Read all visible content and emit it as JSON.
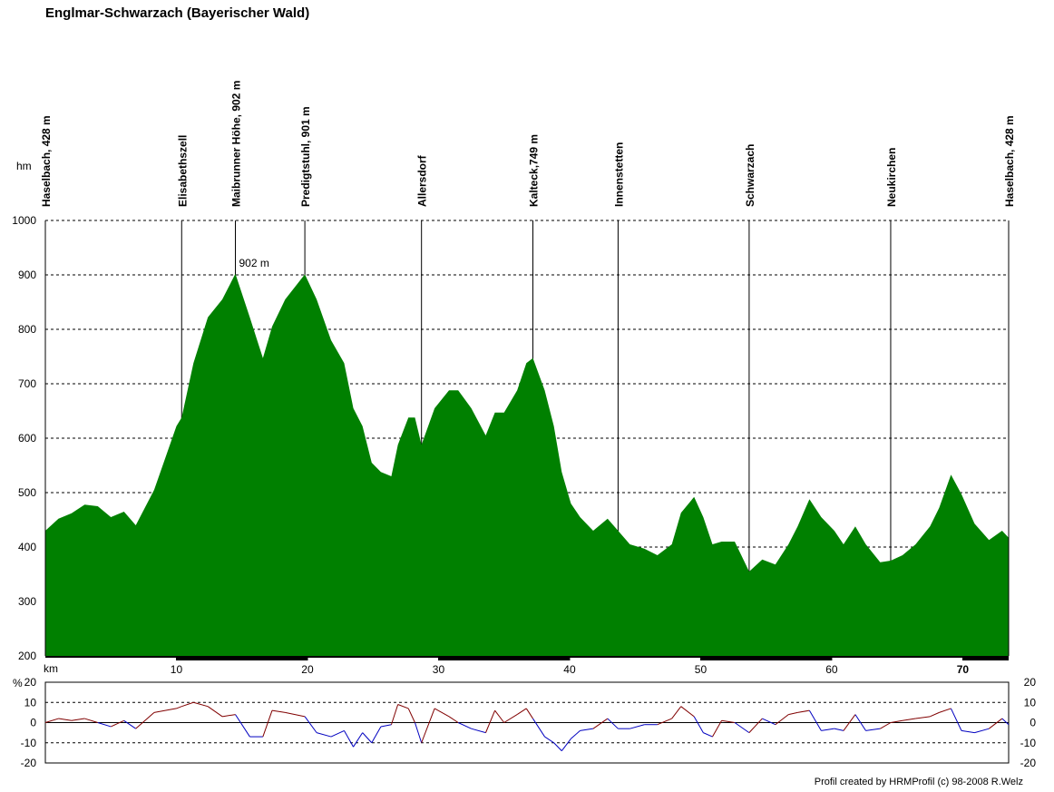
{
  "chart_data": [
    {
      "type": "area",
      "title": "Englmar-Schwarzach (Bayerischer Wald)",
      "y_label": "hm",
      "x_label": "km",
      "color": "#008000",
      "x": [
        0,
        1,
        2,
        3,
        4,
        5,
        6,
        6.9,
        8.3,
        10,
        10.4,
        11.3,
        12.4,
        13.5,
        14.5,
        15.6,
        16.6,
        17.3,
        18.3,
        19.8,
        20.7,
        21.8,
        22.8,
        23.5,
        24.2,
        24.9,
        25.6,
        26.4,
        26.9,
        27.7,
        28.2,
        28.7,
        29.7,
        30.8,
        31.5,
        32.5,
        33.6,
        34.3,
        35,
        36,
        36.7,
        37.2,
        38.1,
        38.8,
        39.4,
        40.1,
        40.8,
        41.8,
        42.9,
        43.7,
        44.6,
        45.7,
        46.7,
        47.8,
        48.5,
        49.5,
        50.2,
        50.9,
        51.6,
        52.6,
        53.7,
        54.7,
        55.7,
        56.7,
        57.4,
        58.3,
        59.2,
        60.2,
        60.9,
        61.8,
        62.6,
        63.7,
        64.5,
        65.4,
        66.4,
        67.5,
        68.2,
        69.1,
        69.9,
        70.9,
        72,
        73,
        73.5
      ],
      "values": [
        430,
        452,
        462,
        478,
        475,
        455,
        465,
        440,
        505,
        622,
        638,
        738,
        822,
        855,
        902,
        822,
        747,
        805,
        855,
        901,
        855,
        780,
        738,
        655,
        622,
        555,
        538,
        530,
        588,
        638,
        638,
        588,
        655,
        688,
        688,
        655,
        605,
        647,
        647,
        688,
        738,
        747,
        688,
        622,
        538,
        480,
        455,
        430,
        452,
        430,
        405,
        397,
        385,
        405,
        463,
        492,
        455,
        405,
        410,
        410,
        355,
        377,
        368,
        405,
        438,
        488,
        455,
        430,
        405,
        438,
        405,
        372,
        375,
        385,
        405,
        438,
        472,
        533,
        497,
        443,
        413,
        430,
        417
      ],
      "xlim": [
        0,
        73.5
      ],
      "ylim": [
        200,
        1000
      ],
      "xticks": [
        10,
        20,
        30,
        40,
        50,
        60,
        70
      ],
      "yticks": [
        200,
        300,
        400,
        500,
        600,
        700,
        800,
        900,
        1000
      ],
      "grid": true,
      "waypoints": [
        {
          "label": "Haselbach, 428 m",
          "x": 0
        },
        {
          "label": "Elisabethszell",
          "x": 10.4
        },
        {
          "label": "Maibrunner Höhe, 902 m",
          "x": 14.5
        },
        {
          "label": "Predigtstuhl, 901 m",
          "x": 19.8
        },
        {
          "label": "Allersdorf",
          "x": 28.7
        },
        {
          "label": "Kalteck,749 m",
          "x": 37.2
        },
        {
          "label": "Innenstetten",
          "x": 43.7
        },
        {
          "label": "Schwarzach",
          "x": 53.7
        },
        {
          "label": "Neukirchen",
          "x": 64.5
        },
        {
          "label": "Haselbach, 428 m",
          "x": 73.5
        }
      ],
      "peak": {
        "text": "902 m",
        "x": 14.5,
        "y": 902,
        "color": "#e00000"
      }
    },
    {
      "type": "gradient",
      "y_label": "%",
      "up_color": "#800000",
      "down_color": "#0000c0",
      "x": [
        0,
        1,
        2,
        3,
        4,
        5,
        6,
        6.9,
        8.3,
        10,
        10.4,
        11.3,
        12.4,
        13.5,
        14.5,
        15.6,
        16.6,
        17.3,
        18.3,
        19.8,
        20.7,
        21.8,
        22.8,
        23.5,
        24.2,
        24.9,
        25.6,
        26.4,
        26.9,
        27.7,
        28.2,
        28.7,
        29.7,
        30.8,
        31.5,
        32.5,
        33.6,
        34.3,
        35,
        36,
        36.7,
        37.2,
        38.1,
        38.8,
        39.4,
        40.1,
        40.8,
        41.8,
        42.9,
        43.7,
        44.6,
        45.7,
        46.7,
        47.8,
        48.5,
        49.5,
        50.2,
        50.9,
        51.6,
        52.6,
        53.7,
        54.7,
        55.7,
        56.7,
        57.4,
        58.3,
        59.2,
        60.2,
        60.9,
        61.8,
        62.6,
        63.7,
        64.5,
        65.4,
        66.4,
        67.5,
        68.2,
        69.1,
        69.9,
        70.9,
        72,
        73,
        73.5
      ],
      "values": [
        0,
        2,
        1,
        2,
        0,
        -2,
        1,
        -3,
        5,
        7,
        8,
        10,
        8,
        3,
        4,
        -7,
        -7,
        6,
        5,
        3,
        -5,
        -7,
        -4,
        -12,
        -5,
        -10,
        -2,
        -1,
        9,
        7,
        0,
        -10,
        7,
        3,
        0,
        -3,
        -5,
        6,
        0,
        4,
        7,
        2,
        -7,
        -10,
        -14,
        -8,
        -4,
        -3,
        2,
        -3,
        -3,
        -1,
        -1,
        2,
        8,
        3,
        -5,
        -7,
        1,
        0,
        -5,
        2,
        -1,
        4,
        5,
        6,
        -4,
        -3,
        -4,
        4,
        -4,
        -3,
        0,
        1,
        2,
        3,
        5,
        7,
        -4,
        -5,
        -3,
        2,
        -1
      ],
      "xlim": [
        0,
        73.5
      ],
      "ylim": [
        -20,
        20
      ],
      "yticks": [
        -20,
        -10,
        0,
        10,
        20
      ],
      "grid": true,
      "footer": "Profil created by HRMProfil (c) 98-2008 R.Welz"
    }
  ]
}
